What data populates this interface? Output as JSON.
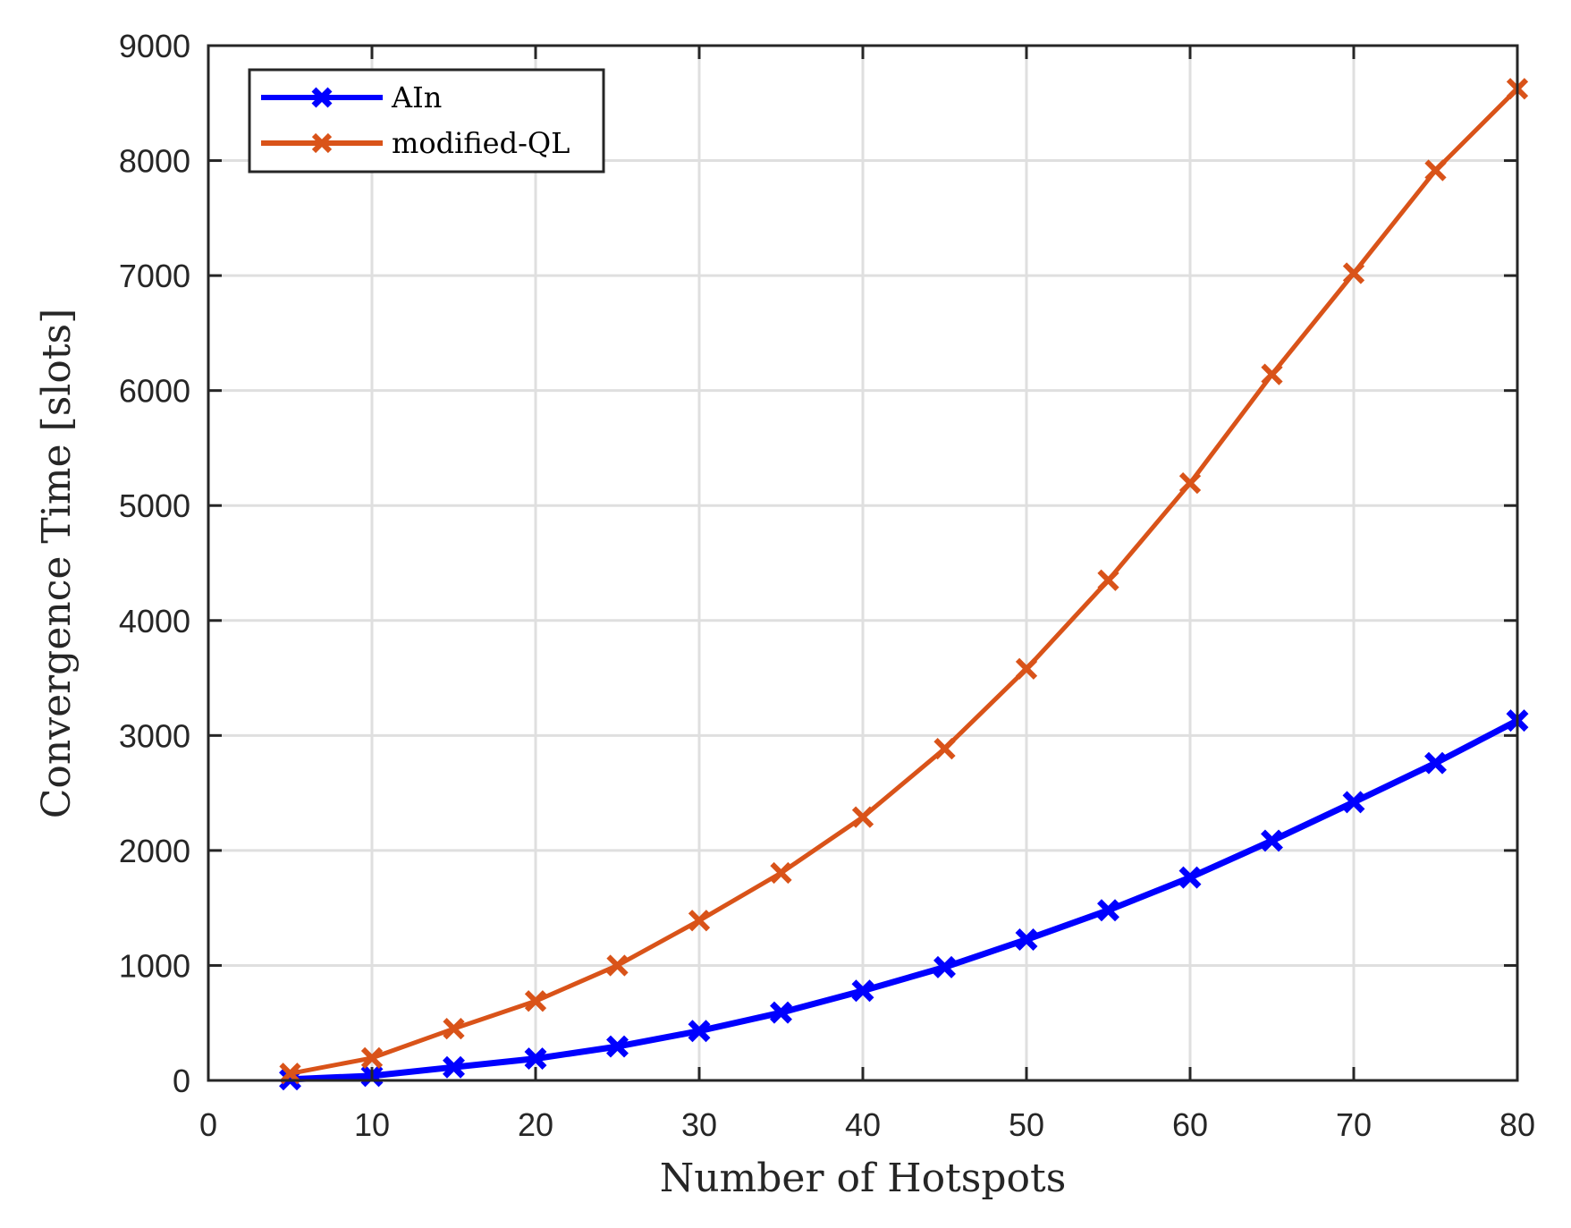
{
  "chart_data": {
    "type": "line",
    "title": "",
    "xlabel": "Number of Hotspots",
    "ylabel": "Convergence Time [slots]",
    "xlim": [
      0,
      80
    ],
    "ylim": [
      0,
      9000
    ],
    "xticks": [
      0,
      10,
      20,
      30,
      40,
      50,
      60,
      70,
      80
    ],
    "yticks": [
      0,
      1000,
      2000,
      3000,
      4000,
      5000,
      6000,
      7000,
      8000,
      9000
    ],
    "grid": true,
    "legend_position": "upper left",
    "x": [
      5,
      10,
      15,
      20,
      25,
      30,
      35,
      40,
      45,
      50,
      55,
      60,
      65,
      70,
      75,
      80
    ],
    "series": [
      {
        "name": "AIn",
        "color": "#0000ff",
        "marker": "x",
        "values": [
          10,
          40,
          115,
          190,
          295,
          430,
          590,
          780,
          985,
          1225,
          1480,
          1765,
          2085,
          2420,
          2760,
          3130
        ]
      },
      {
        "name": "modified-QL",
        "color": "#d95319",
        "marker": "x",
        "values": [
          60,
          195,
          450,
          690,
          1000,
          1390,
          1805,
          2290,
          2885,
          3580,
          4350,
          5195,
          6140,
          7020,
          7915,
          8625
        ]
      }
    ]
  },
  "colors": {
    "axis": "#262626",
    "grid": "#dfdfdf",
    "background": "#ffffff"
  }
}
